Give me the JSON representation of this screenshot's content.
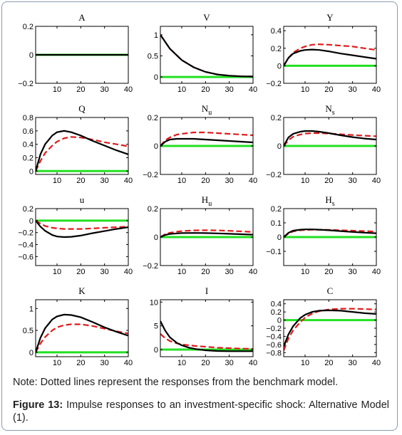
{
  "note": "Note: Dotted lines represent the responses from the benchmark model.",
  "caption": {
    "label": "Figure 13:",
    "text": " Impulse responses to an investment-specific shock: Alternative Model (1)."
  },
  "colors": {
    "benchmark": "#e11b1b",
    "alternative": "#000000",
    "zero_line": "#22e022"
  },
  "chart_data": [
    {
      "type": "line",
      "title": "A",
      "title_sub": "",
      "xlim": [
        1,
        40
      ],
      "ylim": [
        -0.2,
        0.2
      ],
      "xticks": [
        10,
        20,
        30,
        40
      ],
      "xtick_labels": [
        "10",
        "20",
        "30",
        "40"
      ],
      "yticks": [
        -0.2,
        0,
        0.2
      ],
      "ytick_labels": [
        "−0.2",
        "0",
        "0.2"
      ],
      "series": [
        {
          "style": "solid",
          "x": [
            1,
            40
          ],
          "y": [
            0,
            0
          ]
        }
      ]
    },
    {
      "type": "line",
      "title": "V",
      "title_sub": "",
      "xlim": [
        1,
        40
      ],
      "ylim": [
        -0.15,
        1.2
      ],
      "xticks": [
        10,
        20,
        30,
        40
      ],
      "xtick_labels": [
        "10",
        "20",
        "30",
        "40"
      ],
      "yticks": [
        0,
        0.5,
        1
      ],
      "ytick_labels": [
        "0",
        "0.5",
        "1"
      ],
      "series": [
        {
          "style": "dashed",
          "x": [
            1,
            5,
            10,
            15,
            20,
            25,
            30,
            35,
            40
          ],
          "y": [
            1.0,
            0.67,
            0.4,
            0.23,
            0.12,
            0.06,
            0.03,
            0.015,
            0.01
          ]
        },
        {
          "style": "solid",
          "x": [
            1,
            5,
            10,
            15,
            20,
            25,
            30,
            35,
            40
          ],
          "y": [
            1.0,
            0.67,
            0.4,
            0.23,
            0.12,
            0.06,
            0.03,
            0.015,
            0.01
          ]
        }
      ]
    },
    {
      "type": "line",
      "title": "Y",
      "title_sub": "",
      "xlim": [
        1,
        40
      ],
      "ylim": [
        -0.2,
        0.45
      ],
      "xticks": [
        10,
        20,
        30,
        40
      ],
      "xtick_labels": [
        "10",
        "20",
        "30",
        "40"
      ],
      "yticks": [
        -0.2,
        0,
        0.2,
        0.4
      ],
      "ytick_labels": [
        "−0.2",
        "0",
        "0.2",
        "0.4"
      ],
      "series": [
        {
          "style": "dashed",
          "x": [
            1,
            3,
            5,
            8,
            10,
            13,
            16,
            20,
            25,
            30,
            35,
            40
          ],
          "y": [
            0,
            0.09,
            0.15,
            0.2,
            0.22,
            0.24,
            0.245,
            0.24,
            0.23,
            0.22,
            0.2,
            0.18
          ]
        },
        {
          "style": "solid",
          "x": [
            1,
            3,
            5,
            8,
            10,
            13,
            16,
            20,
            25,
            30,
            35,
            40
          ],
          "y": [
            0,
            0.09,
            0.14,
            0.17,
            0.18,
            0.185,
            0.18,
            0.165,
            0.14,
            0.12,
            0.1,
            0.08
          ]
        }
      ]
    },
    {
      "type": "line",
      "title": "Q",
      "title_sub": "",
      "xlim": [
        1,
        40
      ],
      "ylim": [
        -0.05,
        0.8
      ],
      "xticks": [
        10,
        20,
        30,
        40
      ],
      "xtick_labels": [
        "10",
        "20",
        "30",
        "40"
      ],
      "yticks": [
        0,
        0.2,
        0.4,
        0.6,
        0.8
      ],
      "ytick_labels": [
        "0",
        "0.2",
        "0.4",
        "0.6",
        "0.8"
      ],
      "series": [
        {
          "style": "dashed",
          "x": [
            1,
            3,
            5,
            8,
            10,
            13,
            16,
            20,
            25,
            30,
            35,
            40
          ],
          "y": [
            0,
            0.15,
            0.27,
            0.38,
            0.44,
            0.49,
            0.51,
            0.5,
            0.47,
            0.43,
            0.4,
            0.37
          ]
        },
        {
          "style": "solid",
          "x": [
            1,
            3,
            5,
            8,
            10,
            13,
            16,
            20,
            25,
            30,
            35,
            40
          ],
          "y": [
            0,
            0.25,
            0.4,
            0.53,
            0.58,
            0.6,
            0.58,
            0.53,
            0.45,
            0.38,
            0.31,
            0.25
          ]
        }
      ]
    },
    {
      "type": "line",
      "title": "N",
      "title_sub": "u",
      "xlim": [
        1,
        40
      ],
      "ylim": [
        -0.2,
        0.2
      ],
      "xticks": [
        10,
        20,
        30,
        40
      ],
      "xtick_labels": [
        "10",
        "20",
        "30",
        "40"
      ],
      "yticks": [
        -0.2,
        0,
        0.2
      ],
      "ytick_labels": [
        "−0.2",
        "0",
        "0.2"
      ],
      "series": [
        {
          "style": "dashed",
          "x": [
            1,
            3,
            5,
            8,
            10,
            15,
            20,
            25,
            30,
            35,
            40
          ],
          "y": [
            0,
            0.04,
            0.06,
            0.08,
            0.085,
            0.095,
            0.095,
            0.09,
            0.085,
            0.08,
            0.075
          ]
        },
        {
          "style": "solid",
          "x": [
            1,
            3,
            5,
            8,
            10,
            15,
            20,
            25,
            30,
            35,
            40
          ],
          "y": [
            0,
            0.03,
            0.045,
            0.05,
            0.05,
            0.05,
            0.045,
            0.04,
            0.035,
            0.03,
            0.025
          ]
        }
      ]
    },
    {
      "type": "line",
      "title": "N",
      "title_sub": "s",
      "xlim": [
        1,
        40
      ],
      "ylim": [
        -0.2,
        0.2
      ],
      "xticks": [
        10,
        20,
        30,
        40
      ],
      "xtick_labels": [
        "10",
        "20",
        "30",
        "40"
      ],
      "yticks": [
        -0.2,
        0,
        0.2
      ],
      "ytick_labels": [
        "−0.2",
        "0",
        "0.2"
      ],
      "series": [
        {
          "style": "dashed",
          "x": [
            1,
            3,
            5,
            8,
            10,
            13,
            16,
            20,
            25,
            30,
            35,
            40
          ],
          "y": [
            0,
            0.04,
            0.065,
            0.08,
            0.087,
            0.09,
            0.09,
            0.087,
            0.082,
            0.077,
            0.072,
            0.068
          ]
        },
        {
          "style": "solid",
          "x": [
            1,
            3,
            5,
            8,
            10,
            13,
            16,
            20,
            25,
            30,
            35,
            40
          ],
          "y": [
            0,
            0.06,
            0.085,
            0.1,
            0.105,
            0.105,
            0.1,
            0.09,
            0.075,
            0.062,
            0.052,
            0.045
          ]
        }
      ]
    },
    {
      "type": "line",
      "title": "u",
      "title_sub": "",
      "xlim": [
        1,
        40
      ],
      "ylim": [
        -0.75,
        0.2
      ],
      "xticks": [
        10,
        20,
        30,
        40
      ],
      "xtick_labels": [
        "10",
        "20",
        "30",
        "40"
      ],
      "yticks": [
        -0.6,
        -0.4,
        -0.2,
        0,
        0.2
      ],
      "ytick_labels": [
        "−0.6",
        "−0.4",
        "−0.2",
        "0",
        "0.2"
      ],
      "series": [
        {
          "style": "dashed",
          "x": [
            1,
            3,
            5,
            8,
            10,
            13,
            16,
            20,
            25,
            30,
            35,
            40
          ],
          "y": [
            0,
            -0.05,
            -0.09,
            -0.12,
            -0.13,
            -0.14,
            -0.14,
            -0.14,
            -0.13,
            -0.12,
            -0.11,
            -0.1
          ]
        },
        {
          "style": "solid",
          "x": [
            1,
            3,
            5,
            8,
            10,
            13,
            16,
            20,
            25,
            30,
            35,
            40
          ],
          "y": [
            0,
            -0.1,
            -0.17,
            -0.24,
            -0.265,
            -0.275,
            -0.27,
            -0.25,
            -0.21,
            -0.175,
            -0.14,
            -0.11
          ]
        }
      ]
    },
    {
      "type": "line",
      "title": "H",
      "title_sub": "u",
      "xlim": [
        1,
        40
      ],
      "ylim": [
        -0.2,
        0.2
      ],
      "xticks": [
        10,
        20,
        30,
        40
      ],
      "xtick_labels": [
        "10",
        "20",
        "30",
        "40"
      ],
      "yticks": [
        -0.2,
        0,
        0.2
      ],
      "ytick_labels": [
        "−0.2",
        "0",
        "0.2"
      ],
      "series": [
        {
          "style": "dashed",
          "x": [
            1,
            3,
            5,
            8,
            10,
            15,
            20,
            25,
            30,
            35,
            40
          ],
          "y": [
            0,
            0.02,
            0.03,
            0.038,
            0.042,
            0.047,
            0.048,
            0.047,
            0.044,
            0.04,
            0.036
          ]
        },
        {
          "style": "solid",
          "x": [
            1,
            3,
            5,
            8,
            10,
            15,
            20,
            25,
            30,
            35,
            40
          ],
          "y": [
            0,
            0.015,
            0.022,
            0.026,
            0.028,
            0.029,
            0.028,
            0.026,
            0.023,
            0.02,
            0.017
          ]
        }
      ]
    },
    {
      "type": "line",
      "title": "H",
      "title_sub": "s",
      "xlim": [
        1,
        40
      ],
      "ylim": [
        -0.2,
        0.2
      ],
      "xticks": [
        10,
        20,
        30,
        40
      ],
      "xtick_labels": [
        "10",
        "20",
        "30",
        "40"
      ],
      "yticks": [
        -0.1,
        0,
        0.1,
        0.2
      ],
      "ytick_labels": [
        "−0.1",
        "0",
        "0.1",
        "0.2"
      ],
      "series": [
        {
          "style": "dashed",
          "x": [
            1,
            3,
            5,
            8,
            10,
            13,
            16,
            20,
            25,
            30,
            35,
            40
          ],
          "y": [
            0,
            0.025,
            0.04,
            0.048,
            0.05,
            0.052,
            0.052,
            0.051,
            0.048,
            0.045,
            0.042,
            0.039
          ]
        },
        {
          "style": "solid",
          "x": [
            1,
            3,
            5,
            8,
            10,
            13,
            16,
            20,
            25,
            30,
            35,
            40
          ],
          "y": [
            0,
            0.03,
            0.045,
            0.052,
            0.054,
            0.054,
            0.052,
            0.048,
            0.042,
            0.036,
            0.031,
            0.027
          ]
        }
      ]
    },
    {
      "type": "line",
      "title": "K",
      "title_sub": "",
      "xlim": [
        1,
        40
      ],
      "ylim": [
        -0.1,
        1.2
      ],
      "xticks": [
        10,
        20,
        30,
        40
      ],
      "xtick_labels": [
        "10",
        "20",
        "30",
        "40"
      ],
      "yticks": [
        0,
        0.5,
        1
      ],
      "ytick_labels": [
        "0",
        "0.5",
        "1"
      ],
      "series": [
        {
          "style": "dashed",
          "x": [
            1,
            3,
            5,
            8,
            10,
            13,
            16,
            20,
            25,
            30,
            35,
            40
          ],
          "y": [
            0,
            0.2,
            0.35,
            0.5,
            0.57,
            0.62,
            0.64,
            0.64,
            0.6,
            0.54,
            0.48,
            0.43
          ]
        },
        {
          "style": "solid",
          "x": [
            1,
            3,
            5,
            8,
            10,
            13,
            16,
            20,
            25,
            30,
            35,
            40
          ],
          "y": [
            0,
            0.33,
            0.55,
            0.75,
            0.82,
            0.86,
            0.85,
            0.8,
            0.69,
            0.57,
            0.47,
            0.38
          ]
        }
      ]
    },
    {
      "type": "line",
      "title": "I",
      "title_sub": "",
      "xlim": [
        1,
        40
      ],
      "ylim": [
        -1.5,
        10.5
      ],
      "xticks": [
        10,
        20,
        30,
        40
      ],
      "xtick_labels": [
        "10",
        "20",
        "30",
        "40"
      ],
      "yticks": [
        0,
        5,
        10
      ],
      "ytick_labels": [
        "0",
        "5",
        "10"
      ],
      "series": [
        {
          "style": "dashed",
          "x": [
            1,
            3,
            5,
            8,
            10,
            13,
            16,
            20,
            25,
            30,
            35,
            40
          ],
          "y": [
            3.3,
            2.4,
            1.8,
            1.3,
            1.1,
            0.9,
            0.75,
            0.6,
            0.4,
            0.3,
            0.2,
            0.15
          ]
        },
        {
          "style": "solid",
          "x": [
            1,
            3,
            5,
            8,
            10,
            13,
            16,
            20,
            25,
            30,
            35,
            40
          ],
          "y": [
            6.0,
            4.0,
            2.6,
            1.4,
            0.9,
            0.4,
            0.1,
            -0.15,
            -0.3,
            -0.35,
            -0.35,
            -0.35
          ]
        }
      ]
    },
    {
      "type": "line",
      "title": "C",
      "title_sub": "",
      "xlim": [
        1,
        40
      ],
      "ylim": [
        -0.9,
        0.5
      ],
      "xticks": [
        10,
        20,
        30,
        40
      ],
      "xtick_labels": [
        "10",
        "20",
        "30",
        "40"
      ],
      "yticks": [
        -0.8,
        -0.6,
        -0.4,
        -0.2,
        0,
        0.2,
        0.4
      ],
      "ytick_labels": [
        "−0.8",
        "−0.6",
        "−0.4",
        "−0.2",
        "0",
        "0.2",
        "0.4"
      ],
      "series": [
        {
          "style": "dashed",
          "x": [
            1,
            3,
            5,
            8,
            10,
            13,
            16,
            20,
            25,
            30,
            35,
            40
          ],
          "y": [
            -0.75,
            -0.45,
            -0.25,
            -0.05,
            0.06,
            0.16,
            0.22,
            0.26,
            0.28,
            0.28,
            0.27,
            0.26
          ]
        },
        {
          "style": "solid",
          "x": [
            1,
            3,
            5,
            8,
            10,
            13,
            16,
            20,
            25,
            30,
            35,
            40
          ],
          "y": [
            -0.65,
            -0.35,
            -0.15,
            0.05,
            0.13,
            0.2,
            0.23,
            0.24,
            0.23,
            0.2,
            0.17,
            0.15
          ]
        }
      ]
    }
  ]
}
